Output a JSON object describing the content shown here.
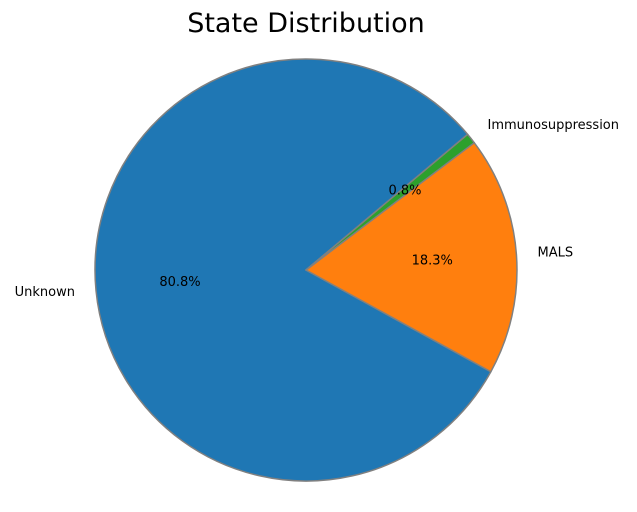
{
  "chart_data": {
    "type": "pie",
    "title": "State Distribution",
    "slices": [
      {
        "label": "Unknown",
        "value": 80.8,
        "pct_label": "80.8%",
        "color": "#1f77b4"
      },
      {
        "label": "MALS",
        "value": 18.3,
        "pct_label": "18.3%",
        "color": "#ff7f0e"
      },
      {
        "label": "Immunosuppression",
        "value": 0.8,
        "pct_label": "0.8%",
        "color": "#2ca02c"
      }
    ],
    "start_angle_deg": 40,
    "edge_color": "#808080",
    "legend": "none"
  }
}
